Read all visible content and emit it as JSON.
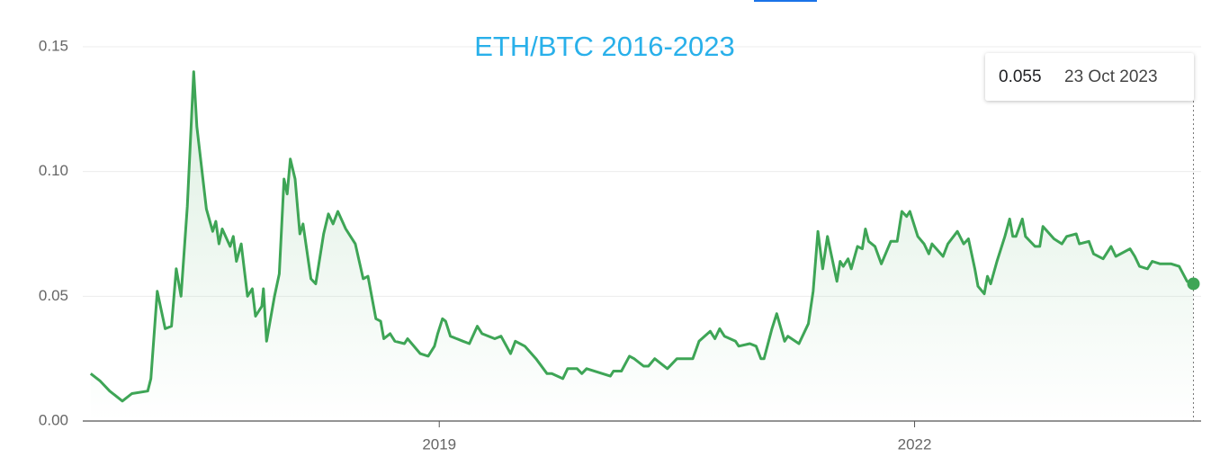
{
  "chart_data": {
    "type": "line",
    "title": "ETH/BTC 2016-2023",
    "x": [
      2016.8,
      2016.86,
      2016.92,
      2017.0,
      2017.06,
      2017.16,
      2017.18,
      2017.22,
      2017.27,
      2017.31,
      2017.34,
      2017.37,
      2017.41,
      2017.45,
      2017.47,
      2017.53,
      2017.57,
      2017.59,
      2017.61,
      2017.63,
      2017.68,
      2017.7,
      2017.72,
      2017.75,
      2017.79,
      2017.82,
      2017.84,
      2017.88,
      2017.89,
      2017.91,
      2017.96,
      2017.99,
      2018.02,
      2018.04,
      2018.06,
      2018.09,
      2018.12,
      2018.14,
      2018.19,
      2018.22,
      2018.27,
      2018.3,
      2018.33,
      2018.36,
      2018.41,
      2018.47,
      2018.52,
      2018.55,
      2018.6,
      2018.63,
      2018.65,
      2018.69,
      2018.72,
      2018.78,
      2018.8,
      2018.88,
      2018.93,
      2018.97,
      2018.99,
      2019.02,
      2019.04,
      2019.07,
      2019.15,
      2019.19,
      2019.24,
      2019.27,
      2019.35,
      2019.39,
      2019.45,
      2019.48,
      2019.54,
      2019.61,
      2019.68,
      2019.71,
      2019.78,
      2019.81,
      2019.87,
      2019.9,
      2019.93,
      2020.03,
      2020.08,
      2020.1,
      2020.15,
      2020.2,
      2020.23,
      2020.29,
      2020.32,
      2020.36,
      2020.44,
      2020.5,
      2020.57,
      2020.6,
      2020.64,
      2020.71,
      2020.74,
      2020.77,
      2020.8,
      2020.87,
      2020.89,
      2020.96,
      2021.0,
      2021.03,
      2021.05,
      2021.1,
      2021.13,
      2021.18,
      2021.2,
      2021.27,
      2021.33,
      2021.36,
      2021.39,
      2021.42,
      2021.45,
      2021.51,
      2021.53,
      2021.55,
      2021.58,
      2021.6,
      2021.64,
      2021.67,
      2021.69,
      2021.71,
      2021.75,
      2021.79,
      2021.85,
      2021.89,
      2021.92,
      2021.95,
      2021.97,
      2022.02,
      2022.06,
      2022.09,
      2022.11,
      2022.18,
      2022.21,
      2022.27,
      2022.31,
      2022.34,
      2022.38,
      2022.4,
      2022.44,
      2022.46,
      2022.48,
      2022.52,
      2022.57,
      2022.6,
      2022.62,
      2022.64,
      2022.68,
      2022.7,
      2022.76,
      2022.79,
      2022.81,
      2022.88,
      2022.93,
      2022.96,
      2023.02,
      2023.04,
      2023.1,
      2023.13,
      2023.19,
      2023.24,
      2023.27,
      2023.36,
      2023.39,
      2023.42,
      2023.47,
      2023.5,
      2023.55,
      2023.62,
      2023.67,
      2023.72,
      2023.76
    ],
    "series": [
      {
        "name": "ETH/BTC",
        "color": "#3ea556",
        "values": [
          0.019,
          0.016,
          0.012,
          0.008,
          0.011,
          0.012,
          0.017,
          0.052,
          0.037,
          0.038,
          0.061,
          0.05,
          0.086,
          0.14,
          0.118,
          0.085,
          0.076,
          0.08,
          0.071,
          0.077,
          0.07,
          0.074,
          0.064,
          0.071,
          0.05,
          0.053,
          0.042,
          0.046,
          0.053,
          0.032,
          0.05,
          0.059,
          0.097,
          0.091,
          0.105,
          0.097,
          0.075,
          0.079,
          0.057,
          0.055,
          0.075,
          0.083,
          0.079,
          0.084,
          0.077,
          0.071,
          0.057,
          0.058,
          0.041,
          0.04,
          0.033,
          0.035,
          0.032,
          0.031,
          0.033,
          0.027,
          0.026,
          0.03,
          0.035,
          0.041,
          0.04,
          0.034,
          0.032,
          0.031,
          0.038,
          0.035,
          0.033,
          0.034,
          0.027,
          0.032,
          0.03,
          0.025,
          0.019,
          0.019,
          0.017,
          0.021,
          0.021,
          0.019,
          0.021,
          0.019,
          0.018,
          0.02,
          0.02,
          0.026,
          0.025,
          0.022,
          0.022,
          0.025,
          0.021,
          0.025,
          0.025,
          0.025,
          0.032,
          0.036,
          0.033,
          0.037,
          0.034,
          0.032,
          0.03,
          0.031,
          0.03,
          0.025,
          0.025,
          0.037,
          0.043,
          0.032,
          0.034,
          0.031,
          0.039,
          0.052,
          0.076,
          0.061,
          0.074,
          0.056,
          0.064,
          0.062,
          0.065,
          0.061,
          0.07,
          0.069,
          0.077,
          0.072,
          0.07,
          0.063,
          0.072,
          0.072,
          0.084,
          0.082,
          0.084,
          0.074,
          0.071,
          0.067,
          0.071,
          0.066,
          0.071,
          0.076,
          0.071,
          0.073,
          0.061,
          0.054,
          0.051,
          0.058,
          0.055,
          0.064,
          0.074,
          0.081,
          0.074,
          0.074,
          0.081,
          0.074,
          0.07,
          0.07,
          0.078,
          0.073,
          0.071,
          0.074,
          0.075,
          0.071,
          0.072,
          0.067,
          0.065,
          0.07,
          0.066,
          0.069,
          0.066,
          0.062,
          0.061,
          0.064,
          0.063,
          0.063,
          0.062,
          0.056,
          0.055
        ]
      }
    ],
    "xlim": [
      2016.75,
      2023.78
    ],
    "xticks": [
      2019,
      2022
    ],
    "ylim": [
      0,
      0.15
    ],
    "yticks": [
      {
        "value": 0,
        "label": "0.00"
      },
      0.05,
      {
        "value": 0.1,
        "label": "0.10"
      },
      0.15
    ],
    "grid": true,
    "tooltip": {
      "value": 0.055,
      "date": "23 Oct 2023"
    }
  }
}
